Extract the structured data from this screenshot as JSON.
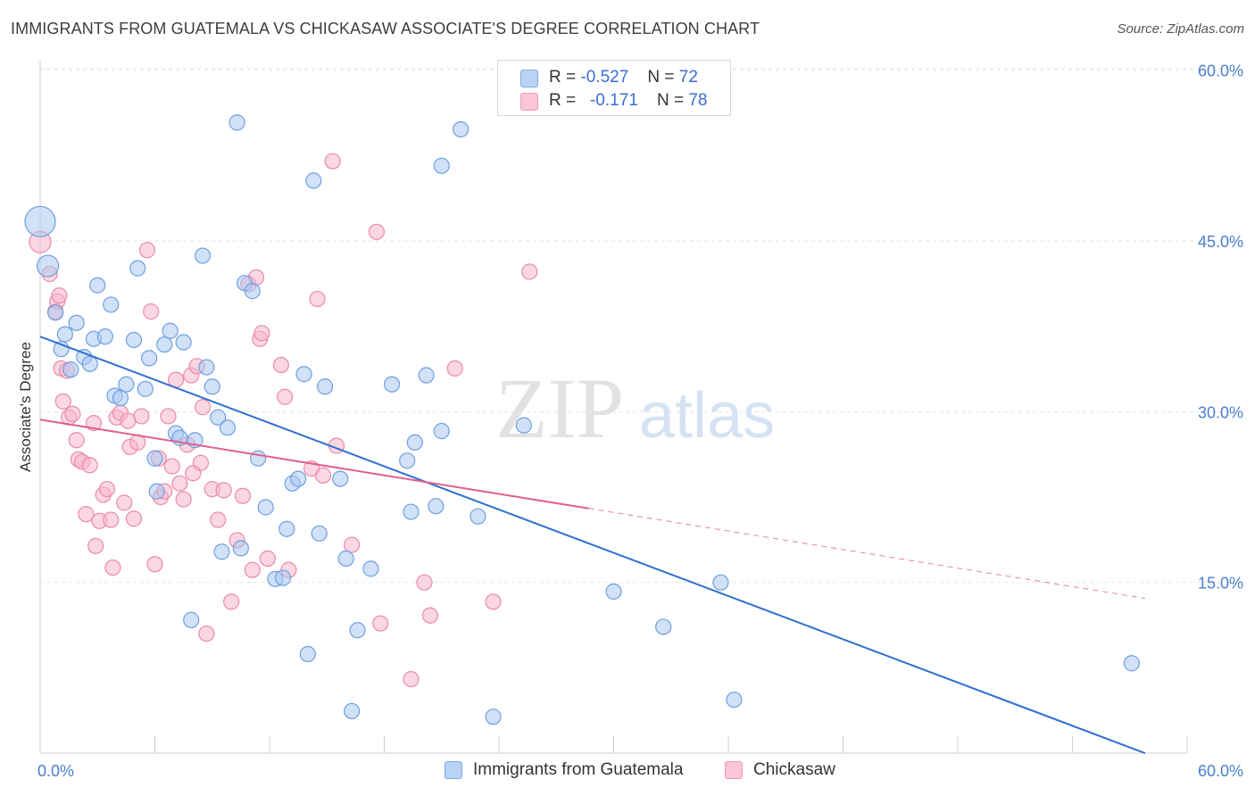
{
  "title": "IMMIGRANTS FROM GUATEMALA VS CHICKASAW ASSOCIATE'S DEGREE CORRELATION CHART",
  "source": "Source: ZipAtlas.com",
  "watermark": {
    "zip": "ZIP",
    "atlas": "atlas"
  },
  "colors": {
    "blue_fill": "#a9c8f2",
    "blue_stroke": "#6f9fe0",
    "blue_line": "#2f6fd0",
    "pink_fill": "#f7b6cb",
    "pink_stroke": "#e98aaa",
    "pink_line": "#e0608f",
    "axis_text": "#4a7fd0",
    "grid": "#e6e6e6"
  },
  "legend": {
    "rows": [
      {
        "r_label": "R =",
        "r_value": "-0.527",
        "n_label": "N =",
        "n_value": "72"
      },
      {
        "r_label": "R =",
        "r_value": "-0.171",
        "n_label": "N =",
        "n_value": "78"
      }
    ]
  },
  "bottom_legend": [
    {
      "label": "Immigrants from Guatemala"
    },
    {
      "label": "Chickasaw"
    }
  ],
  "chart_data": {
    "type": "scatter",
    "title": "IMMIGRANTS FROM GUATEMALA VS CHICKASAW ASSOCIATE'S DEGREE CORRELATION CHART",
    "xlabel": "",
    "ylabel": "Associate's Degree",
    "xlim": [
      0,
      60
    ],
    "ylim": [
      0,
      65
    ],
    "x_tick_labels": [
      "0.0%",
      "60.0%"
    ],
    "y_ticks": [
      15,
      30,
      45,
      60
    ],
    "y_tick_labels": [
      "15.0%",
      "30.0%",
      "45.0%",
      "60.0%"
    ],
    "grid": true,
    "legend_position": "top-center",
    "series": [
      {
        "name": "Immigrants from Guatemala",
        "r": -0.527,
        "n": 72,
        "trend": {
          "x0": 0,
          "y0": 36.6,
          "x1": 57.8,
          "y1": 0
        },
        "points": [
          [
            0.0,
            46.7,
            3
          ],
          [
            0.4,
            42.8,
            2
          ],
          [
            0.8,
            38.7,
            1
          ],
          [
            1.1,
            35.5,
            1
          ],
          [
            1.3,
            36.8,
            1
          ],
          [
            1.6,
            33.7,
            1
          ],
          [
            1.9,
            37.8,
            1
          ],
          [
            2.3,
            34.8,
            1
          ],
          [
            2.6,
            34.2,
            1
          ],
          [
            2.8,
            36.4,
            1
          ],
          [
            3.0,
            41.1,
            1
          ],
          [
            3.4,
            36.6,
            1
          ],
          [
            3.7,
            39.4,
            1
          ],
          [
            3.9,
            31.4,
            1
          ],
          [
            4.2,
            31.2,
            1
          ],
          [
            4.5,
            32.4,
            1
          ],
          [
            4.9,
            36.3,
            1
          ],
          [
            5.1,
            42.6,
            1
          ],
          [
            5.5,
            32.0,
            1
          ],
          [
            5.7,
            34.7,
            1
          ],
          [
            6.0,
            25.9,
            1
          ],
          [
            6.1,
            23.0,
            1
          ],
          [
            6.5,
            35.9,
            1
          ],
          [
            6.8,
            37.1,
            1
          ],
          [
            7.1,
            28.1,
            1
          ],
          [
            7.3,
            27.7,
            1
          ],
          [
            7.5,
            36.1,
            1
          ],
          [
            7.9,
            11.7,
            1
          ],
          [
            8.1,
            27.5,
            1
          ],
          [
            8.5,
            43.7,
            1
          ],
          [
            8.7,
            33.9,
            1
          ],
          [
            9.0,
            32.2,
            1
          ],
          [
            9.3,
            29.5,
            1
          ],
          [
            9.5,
            17.7,
            1
          ],
          [
            9.8,
            28.6,
            1
          ],
          [
            10.3,
            55.4,
            1
          ],
          [
            10.5,
            18.0,
            1
          ],
          [
            10.7,
            41.3,
            1
          ],
          [
            11.1,
            40.6,
            1
          ],
          [
            11.4,
            25.9,
            1
          ],
          [
            11.8,
            21.6,
            1
          ],
          [
            12.3,
            15.3,
            1
          ],
          [
            12.7,
            15.4,
            1
          ],
          [
            12.9,
            19.7,
            1
          ],
          [
            13.2,
            23.7,
            1
          ],
          [
            13.5,
            24.1,
            1
          ],
          [
            13.8,
            33.3,
            1
          ],
          [
            14.3,
            50.3,
            1
          ],
          [
            14.0,
            8.7,
            1
          ],
          [
            14.6,
            19.3,
            1
          ],
          [
            14.9,
            32.2,
            1
          ],
          [
            15.7,
            24.1,
            1
          ],
          [
            16.0,
            17.1,
            1
          ],
          [
            16.6,
            10.8,
            1
          ],
          [
            16.3,
            3.7,
            1
          ],
          [
            17.3,
            16.2,
            1
          ],
          [
            18.4,
            32.4,
            1
          ],
          [
            19.2,
            25.7,
            1
          ],
          [
            19.4,
            21.2,
            1
          ],
          [
            19.6,
            27.3,
            1
          ],
          [
            20.2,
            33.2,
            1
          ],
          [
            20.7,
            21.7,
            1
          ],
          [
            21.0,
            28.3,
            1
          ],
          [
            21.0,
            51.6,
            1
          ],
          [
            22.0,
            54.8,
            1
          ],
          [
            22.9,
            20.8,
            1
          ],
          [
            23.7,
            3.2,
            1
          ],
          [
            25.3,
            28.8,
            1
          ],
          [
            30.0,
            14.2,
            1
          ],
          [
            32.6,
            11.1,
            1
          ],
          [
            35.6,
            15.0,
            1
          ],
          [
            36.3,
            4.7,
            1
          ],
          [
            57.1,
            7.9,
            1
          ]
        ]
      },
      {
        "name": "Chickasaw",
        "r": -0.171,
        "n": 78,
        "trend": {
          "x0": 0,
          "y0": 29.3,
          "x1": 28.7,
          "y1": 21.5
        },
        "trend_dashed": {
          "x0": 28.7,
          "y0": 21.5,
          "x1": 57.8,
          "y1": 13.6
        },
        "points": [
          [
            0.0,
            44.9,
            2
          ],
          [
            0.5,
            42.1,
            1
          ],
          [
            0.8,
            38.8,
            1
          ],
          [
            0.9,
            39.7,
            1
          ],
          [
            1.0,
            40.2,
            1
          ],
          [
            1.1,
            33.8,
            1
          ],
          [
            1.2,
            30.9,
            1
          ],
          [
            1.4,
            33.6,
            1
          ],
          [
            1.5,
            29.5,
            1
          ],
          [
            1.7,
            29.8,
            1
          ],
          [
            1.9,
            27.5,
            1
          ],
          [
            2.0,
            25.8,
            1
          ],
          [
            2.2,
            25.6,
            1
          ],
          [
            2.4,
            21.0,
            1
          ],
          [
            2.6,
            25.3,
            1
          ],
          [
            2.8,
            29.0,
            1
          ],
          [
            2.9,
            18.2,
            1
          ],
          [
            3.1,
            20.4,
            1
          ],
          [
            3.3,
            22.7,
            1
          ],
          [
            3.5,
            23.2,
            1
          ],
          [
            3.7,
            20.5,
            1
          ],
          [
            3.8,
            16.3,
            1
          ],
          [
            4.0,
            29.5,
            1
          ],
          [
            4.2,
            29.9,
            1
          ],
          [
            4.4,
            22.0,
            1
          ],
          [
            4.6,
            29.2,
            1
          ],
          [
            4.7,
            26.9,
            1
          ],
          [
            4.9,
            20.6,
            1
          ],
          [
            5.1,
            27.3,
            1
          ],
          [
            5.3,
            29.6,
            1
          ],
          [
            5.6,
            44.2,
            1
          ],
          [
            5.8,
            38.8,
            1
          ],
          [
            6.0,
            16.6,
            1
          ],
          [
            6.2,
            25.9,
            1
          ],
          [
            6.3,
            22.5,
            1
          ],
          [
            6.5,
            23.0,
            1
          ],
          [
            6.7,
            29.6,
            1
          ],
          [
            6.9,
            25.2,
            1
          ],
          [
            7.1,
            32.8,
            1
          ],
          [
            7.3,
            23.7,
            1
          ],
          [
            7.5,
            22.3,
            1
          ],
          [
            7.7,
            27.1,
            1
          ],
          [
            7.9,
            33.2,
            1
          ],
          [
            8.0,
            24.6,
            1
          ],
          [
            8.2,
            34.0,
            1
          ],
          [
            8.4,
            25.5,
            1
          ],
          [
            8.5,
            30.4,
            1
          ],
          [
            8.7,
            10.5,
            1
          ],
          [
            9.0,
            23.2,
            1
          ],
          [
            9.3,
            20.5,
            1
          ],
          [
            9.6,
            23.1,
            1
          ],
          [
            10.0,
            13.3,
            1
          ],
          [
            10.3,
            18.7,
            1
          ],
          [
            10.6,
            22.6,
            1
          ],
          [
            10.9,
            41.2,
            1
          ],
          [
            11.1,
            16.1,
            1
          ],
          [
            11.3,
            41.8,
            1
          ],
          [
            11.5,
            36.4,
            1
          ],
          [
            11.6,
            36.9,
            1
          ],
          [
            11.9,
            17.1,
            1
          ],
          [
            12.6,
            34.1,
            1
          ],
          [
            12.8,
            31.3,
            1
          ],
          [
            13.0,
            16.1,
            1
          ],
          [
            14.2,
            25.0,
            1
          ],
          [
            14.5,
            39.9,
            1
          ],
          [
            14.8,
            24.4,
            1
          ],
          [
            15.3,
            52.0,
            1
          ],
          [
            15.5,
            27.0,
            1
          ],
          [
            16.3,
            18.3,
            1
          ],
          [
            17.6,
            45.8,
            1
          ],
          [
            17.8,
            11.4,
            1
          ],
          [
            19.4,
            6.5,
            1
          ],
          [
            20.1,
            15.0,
            1
          ],
          [
            20.4,
            12.1,
            1
          ],
          [
            21.7,
            33.8,
            1
          ],
          [
            23.7,
            13.3,
            1
          ],
          [
            25.6,
            42.3,
            1
          ]
        ]
      }
    ]
  }
}
